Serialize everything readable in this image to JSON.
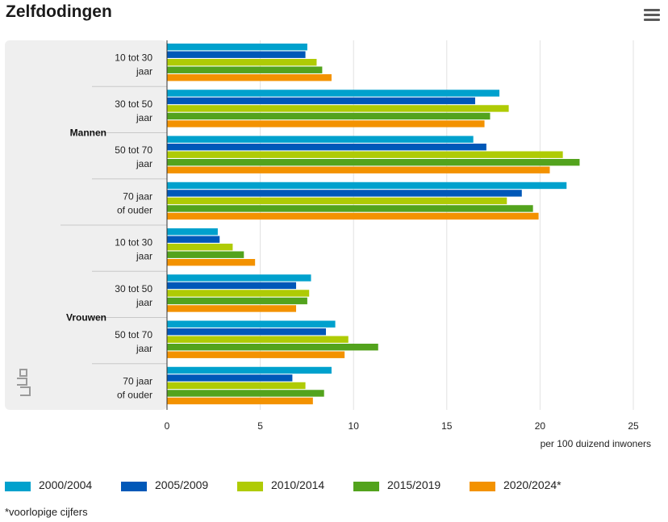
{
  "title": "Zelfdodingen",
  "menu_icon": "hamburger-menu-icon",
  "logo_icon": "cbs-logo-icon",
  "footnote": "*voorlopige cijfers",
  "chart_data": {
    "type": "bar",
    "orientation": "horizontal",
    "groups": [
      {
        "label": "Mannen",
        "categories": [
          [
            "10 tot 30",
            "jaar"
          ],
          [
            "30 tot 50",
            "jaar"
          ],
          [
            "50 tot 70",
            "jaar"
          ],
          [
            "70 jaar",
            "of ouder"
          ]
        ]
      },
      {
        "label": "Vrouwen",
        "categories": [
          [
            "10 tot 30",
            "jaar"
          ],
          [
            "30 tot 50",
            "jaar"
          ],
          [
            "50 tot 70",
            "jaar"
          ],
          [
            "70 jaar",
            "of ouder"
          ]
        ]
      }
    ],
    "series": [
      {
        "name": "2000/2004",
        "color": "#00a1cd",
        "values": [
          7.5,
          17.8,
          16.4,
          21.4,
          2.7,
          7.7,
          9.0,
          8.8
        ]
      },
      {
        "name": "2005/2009",
        "color": "#0058b8",
        "values": [
          7.4,
          16.5,
          17.1,
          19.0,
          2.8,
          6.9,
          8.5,
          6.7
        ]
      },
      {
        "name": "2010/2014",
        "color": "#afcb05",
        "values": [
          8.0,
          18.3,
          21.2,
          18.2,
          3.5,
          7.6,
          9.7,
          7.4
        ]
      },
      {
        "name": "2015/2019",
        "color": "#53a31d",
        "values": [
          8.3,
          17.3,
          22.1,
          19.6,
          4.1,
          7.5,
          11.3,
          8.4
        ]
      },
      {
        "name": "2020/2024*",
        "color": "#f39200",
        "values": [
          8.8,
          17.0,
          20.5,
          19.9,
          4.7,
          6.9,
          9.5,
          7.8
        ]
      }
    ],
    "xlim": [
      0,
      25
    ],
    "xticks": [
      "0",
      "5",
      "10",
      "15",
      "20",
      "25"
    ],
    "xlabel": "per 100 duizend inwoners",
    "grid": true,
    "legend_position": "bottom"
  }
}
